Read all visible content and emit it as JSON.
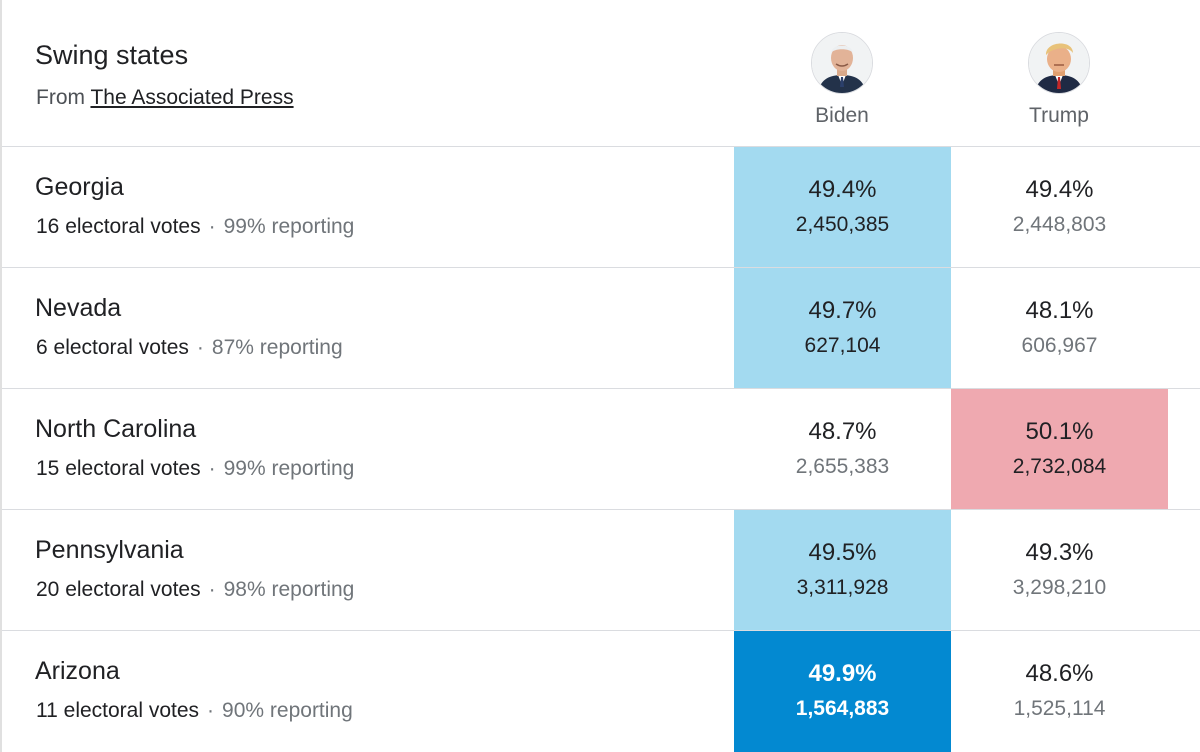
{
  "header": {
    "title": "Swing states",
    "source_prefix": "From",
    "source_link": "The Associated Press"
  },
  "candidates": [
    {
      "name": "Biden",
      "avatar_icon": "biden-avatar-icon",
      "color": "#0389d1"
    },
    {
      "name": "Trump",
      "avatar_icon": "trump-avatar-icon",
      "color": "#ea4335"
    }
  ],
  "separator": "·",
  "states": [
    {
      "name": "Georgia",
      "electoral_votes": "16 electoral votes",
      "reporting": "99% reporting",
      "biden": {
        "pct": "49.4%",
        "votes": "2,450,385"
      },
      "trump": {
        "pct": "49.4%",
        "votes": "2,448,803"
      },
      "leader": "biden",
      "called": false
    },
    {
      "name": "Nevada",
      "electoral_votes": "6 electoral votes",
      "reporting": "87% reporting",
      "biden": {
        "pct": "49.7%",
        "votes": "627,104"
      },
      "trump": {
        "pct": "48.1%",
        "votes": "606,967"
      },
      "leader": "biden",
      "called": false
    },
    {
      "name": "North Carolina",
      "electoral_votes": "15 electoral votes",
      "reporting": "99% reporting",
      "biden": {
        "pct": "48.7%",
        "votes": "2,655,383"
      },
      "trump": {
        "pct": "50.1%",
        "votes": "2,732,084"
      },
      "leader": "trump",
      "called": false
    },
    {
      "name": "Pennsylvania",
      "electoral_votes": "20 electoral votes",
      "reporting": "98% reporting",
      "biden": {
        "pct": "49.5%",
        "votes": "3,311,928"
      },
      "trump": {
        "pct": "49.3%",
        "votes": "3,298,210"
      },
      "leader": "biden",
      "called": false
    },
    {
      "name": "Arizona",
      "electoral_votes": "11 electoral votes",
      "reporting": "90% reporting",
      "biden": {
        "pct": "49.9%",
        "votes": "1,564,883"
      },
      "trump": {
        "pct": "48.6%",
        "votes": "1,525,114"
      },
      "leader": "biden",
      "called": true
    }
  ],
  "colors": {
    "biden_lead": "#a3daf0",
    "biden_called": "#0389d1",
    "trump_lead": "#efa9b0",
    "divider": "#dadce0"
  }
}
